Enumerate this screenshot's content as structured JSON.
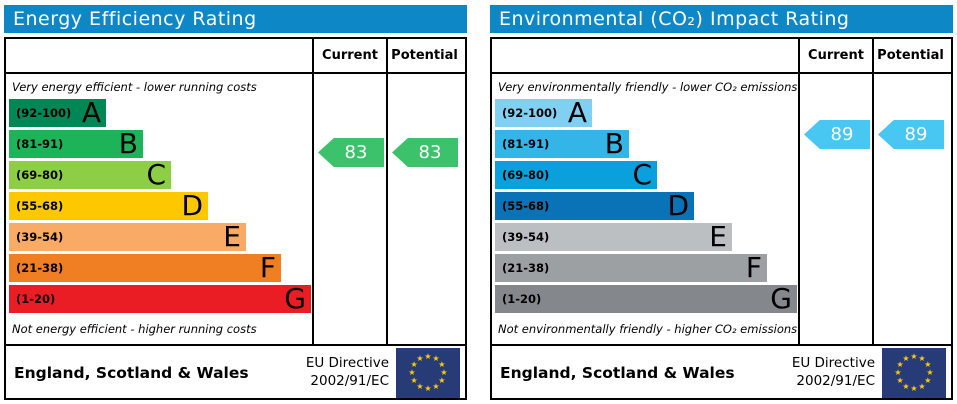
{
  "labels": {
    "current": "Current",
    "potential": "Potential"
  },
  "footer": {
    "region": "England, Scotland & Wales",
    "directive_line1": "EU Directive",
    "directive_line2": "2002/91/EC",
    "flag_color": "#273c77",
    "star_color": "#ffcc00"
  },
  "energy": {
    "title": "Energy Efficiency Rating",
    "header_color": "#0e87c6",
    "top_caption": "Very energy efficient - lower running costs",
    "bottom_caption": "Not energy efficient - higher running costs",
    "bands": [
      {
        "letter": "A",
        "range": "(92-100)",
        "color": "#008755"
      },
      {
        "letter": "B",
        "range": "(81-91)",
        "color": "#1db459"
      },
      {
        "letter": "C",
        "range": "(69-80)",
        "color": "#8dce46"
      },
      {
        "letter": "D",
        "range": "(55-68)",
        "color": "#fdc800"
      },
      {
        "letter": "E",
        "range": "(39-54)",
        "color": "#f9aa65"
      },
      {
        "letter": "F",
        "range": "(21-38)",
        "color": "#f07e23"
      },
      {
        "letter": "G",
        "range": "(1-20)",
        "color": "#ea1d25"
      }
    ],
    "current": {
      "value": "83",
      "color": "#3cc26b"
    },
    "potential": {
      "value": "83",
      "color": "#3cc26b"
    }
  },
  "environment": {
    "title": "Environmental (CO₂) Impact Rating",
    "header_color": "#0e87c6",
    "top_caption": "Very environmentally friendly - lower CO₂ emissions",
    "bottom_caption": "Not environmentally friendly - higher CO₂ emissions",
    "bands": [
      {
        "letter": "A",
        "range": "(92-100)",
        "color": "#7fd0f2"
      },
      {
        "letter": "B",
        "range": "(81-91)",
        "color": "#33b6e7"
      },
      {
        "letter": "C",
        "range": "(69-80)",
        "color": "#0aa0dc"
      },
      {
        "letter": "D",
        "range": "(55-68)",
        "color": "#0a73b8"
      },
      {
        "letter": "E",
        "range": "(39-54)",
        "color": "#bcbfc1"
      },
      {
        "letter": "F",
        "range": "(21-38)",
        "color": "#9da0a3"
      },
      {
        "letter": "G",
        "range": "(1-20)",
        "color": "#84878b"
      }
    ],
    "current": {
      "value": "89",
      "color": "#49c7f3"
    },
    "potential": {
      "value": "89",
      "color": "#49c7f3"
    }
  },
  "chart_data": [
    {
      "type": "bar",
      "title": "Energy Efficiency Rating",
      "categories": [
        "A",
        "B",
        "C",
        "D",
        "E",
        "F",
        "G"
      ],
      "band_ranges": [
        "92-100",
        "81-91",
        "69-80",
        "55-68",
        "39-54",
        "21-38",
        "1-20"
      ],
      "band_colors": [
        "#008755",
        "#1db459",
        "#8dce46",
        "#fdc800",
        "#f9aa65",
        "#f07e23",
        "#ea1d25"
      ],
      "series": [
        {
          "name": "Current",
          "values": [
            83
          ]
        },
        {
          "name": "Potential",
          "values": [
            83
          ]
        }
      ],
      "current": 83,
      "potential": 83,
      "current_band": "B",
      "potential_band": "B",
      "scale": [
        1,
        100
      ],
      "top_note": "Very energy efficient - lower running costs",
      "bottom_note": "Not energy efficient - higher running costs"
    },
    {
      "type": "bar",
      "title": "Environmental (CO₂) Impact Rating",
      "categories": [
        "A",
        "B",
        "C",
        "D",
        "E",
        "F",
        "G"
      ],
      "band_ranges": [
        "92-100",
        "81-91",
        "69-80",
        "55-68",
        "39-54",
        "21-38",
        "1-20"
      ],
      "band_colors": [
        "#7fd0f2",
        "#33b6e7",
        "#0aa0dc",
        "#0a73b8",
        "#bcbfc1",
        "#9da0a3",
        "#84878b"
      ],
      "series": [
        {
          "name": "Current",
          "values": [
            89
          ]
        },
        {
          "name": "Potential",
          "values": [
            89
          ]
        }
      ],
      "current": 89,
      "potential": 89,
      "current_band": "B",
      "potential_band": "B",
      "scale": [
        1,
        100
      ],
      "top_note": "Very environmentally friendly - lower CO₂ emissions",
      "bottom_note": "Not environmentally friendly - higher CO₂ emissions"
    }
  ]
}
